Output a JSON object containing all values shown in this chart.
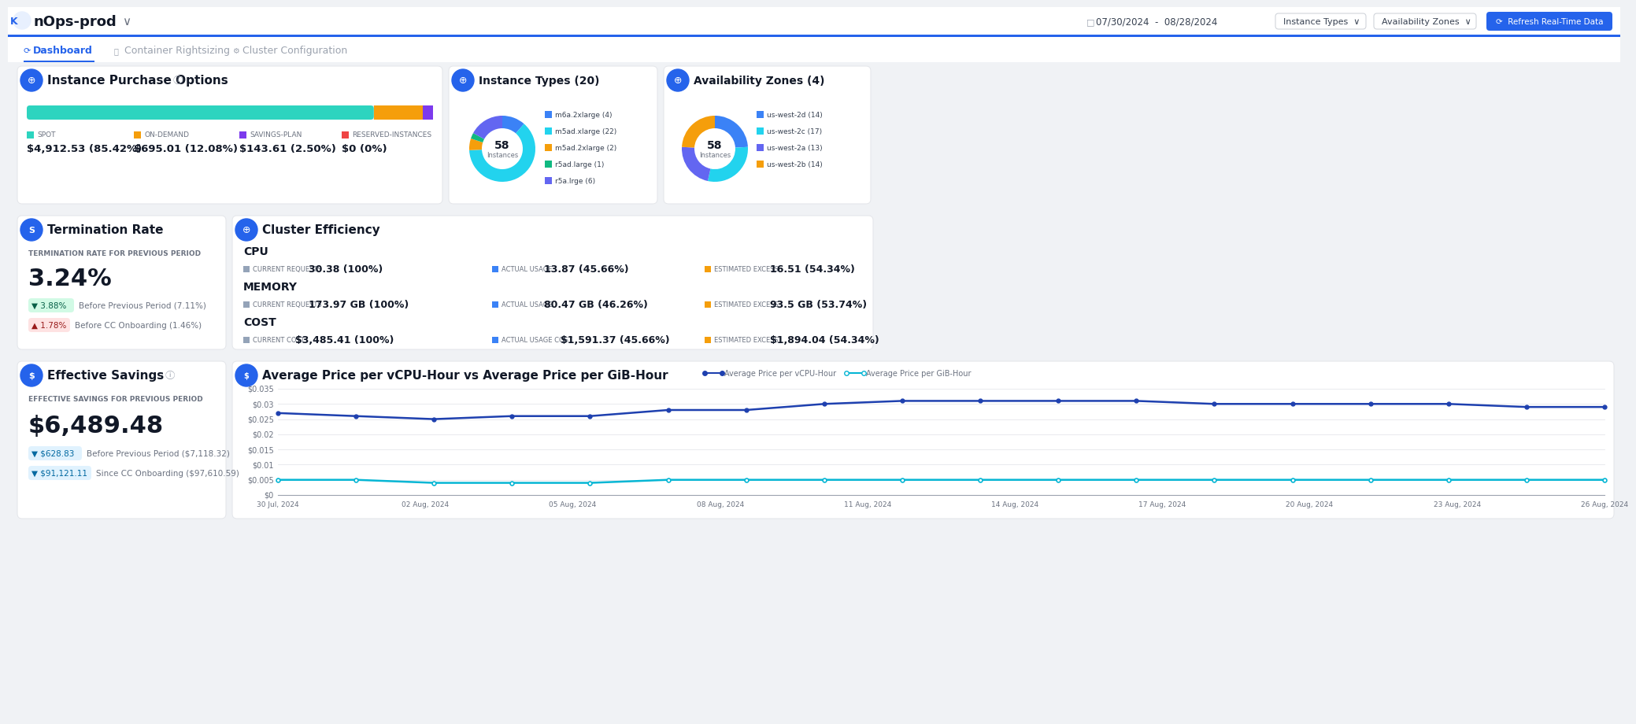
{
  "bg_color": "#f0f2f5",
  "card_bg": "#ffffff",
  "title": "nOps-prod",
  "nav_tabs": [
    "Dashboard",
    "Container Rightsizing",
    "Cluster Configuration"
  ],
  "date_range": "07/30/2024  -  08/28/2024",
  "section1_title": "Instance Purchase Options",
  "bar_spot_pct": 0.8542,
  "bar_ondemand_pct": 0.1208,
  "bar_savings_pct": 0.025,
  "bar_reserved_pct": 0.0,
  "bar_colors": [
    "#2dd4bf",
    "#f59e0b",
    "#7c3aed",
    "#ef4444"
  ],
  "spot_label": "SPOT",
  "spot_value": "$4,912.53 (85.42%)",
  "ondemand_label": "ON-DEMAND",
  "ondemand_value": "$695.01 (12.08%)",
  "savings_label": "SAVINGS-PLAN",
  "savings_value": "$143.61 (2.50%)",
  "reserved_label": "RESERVED-INSTANCES",
  "reserved_value": "$0 (0%)",
  "section2_title": "Instance Types (20)",
  "donut1_segments": [
    4,
    22,
    2,
    1,
    6
  ],
  "donut1_colors": [
    "#3b82f6",
    "#22d3ee",
    "#f59e0b",
    "#10b981",
    "#6366f1"
  ],
  "donut1_labels": [
    "m6a.2xlarge (4)",
    "m5ad.xlarge (22)",
    "m5ad.2xlarge (2)",
    "r5ad.large (1)",
    "r5a.lrge (6)"
  ],
  "section3_title": "Availability Zones (4)",
  "donut2_segments": [
    14,
    17,
    13,
    14
  ],
  "donut2_colors": [
    "#3b82f6",
    "#22d3ee",
    "#6366f1",
    "#f59e0b"
  ],
  "donut2_labels": [
    "us-west-2d (14)",
    "us-west-2c (17)",
    "us-west-2a (13)",
    "us-west-2b (14)"
  ],
  "section_term_title": "Termination Rate",
  "term_subtitle": "TERMINATION RATE FOR PREVIOUS PERIOD",
  "term_rate": "3.24%",
  "term_before_prev": "3.88%",
  "term_before_prev_label": "Before Previous Period (7.11%)",
  "term_cc": "1.78%",
  "term_cc_label": "Before CC Onboarding (1.46%)",
  "cluster_title": "Cluster Efficiency",
  "cpu_current": "30.38 (100%)",
  "cpu_actual": "13.87 (45.66%)",
  "cpu_excess": "16.51 (54.34%)",
  "mem_current": "173.97 GB (100%)",
  "mem_actual": "80.47 GB (46.26%)",
  "mem_excess": "93.5 GB (53.74%)",
  "cost_current": "$3,485.41 (100%)",
  "cost_actual": "$1,591.37 (45.66%)",
  "cost_excess": "$1,894.04 (54.34%)",
  "eff_savings_title": "Effective Savings",
  "eff_subtitle": "EFFECTIVE SAVINGS FOR PREVIOUS PERIOD",
  "eff_value": "$6,489.48",
  "eff_prev": "$628.83",
  "eff_prev_label": "Before Previous Period ($7,118.32)",
  "eff_cc": "$91,121.11",
  "eff_cc_label": "Since CC Onboarding ($97,610.59)",
  "chart_title": "Average Price per vCPU-Hour vs Average Price per GiB-Hour",
  "chart_legend1": "Average Price per vCPU-Hour",
  "chart_legend2": "Average Price per GiB-Hour",
  "chart_color1": "#1e40af",
  "chart_color2": "#06b6d4",
  "chart_dates": [
    "30 Jul, 2024",
    "02 Aug, 2024",
    "05 Aug, 2024",
    "08 Aug, 2024",
    "11 Aug, 2024",
    "14 Aug, 2024",
    "17 Aug, 2024",
    "20 Aug, 2024",
    "23 Aug, 2024",
    "26 Aug, 2024"
  ],
  "vcpu_values": [
    0.027,
    0.026,
    0.025,
    0.026,
    0.026,
    0.028,
    0.028,
    0.03,
    0.031,
    0.031,
    0.031,
    0.031,
    0.03,
    0.03,
    0.03,
    0.03,
    0.029,
    0.029
  ],
  "gib_values": [
    0.005,
    0.005,
    0.004,
    0.004,
    0.004,
    0.005,
    0.005,
    0.005,
    0.005,
    0.005,
    0.005,
    0.005,
    0.005,
    0.005,
    0.005,
    0.005,
    0.005,
    0.005
  ],
  "chart_ylabels": [
    "$0",
    "$0.005",
    "$0.01",
    "$0.015",
    "$0.02",
    "$0.025",
    "$0.03",
    "$0.035"
  ],
  "accent_blue": "#2563eb",
  "indicator_blue": "#3b82f6",
  "indicator_gray": "#94a3b8",
  "indicator_orange": "#f59e0b",
  "text_dark": "#111827",
  "text_gray": "#6b7280",
  "text_light": "#9ca3af",
  "border_color": "#e5e7eb",
  "topbar_bg": "#ffffff",
  "badge_green_bg": "#d1fae5",
  "badge_green_text": "#065f46",
  "badge_red_bg": "#fee2e2",
  "badge_red_text": "#991b1b",
  "badge_teal_bg": "#e0f2fe",
  "badge_teal_text": "#0369a1"
}
